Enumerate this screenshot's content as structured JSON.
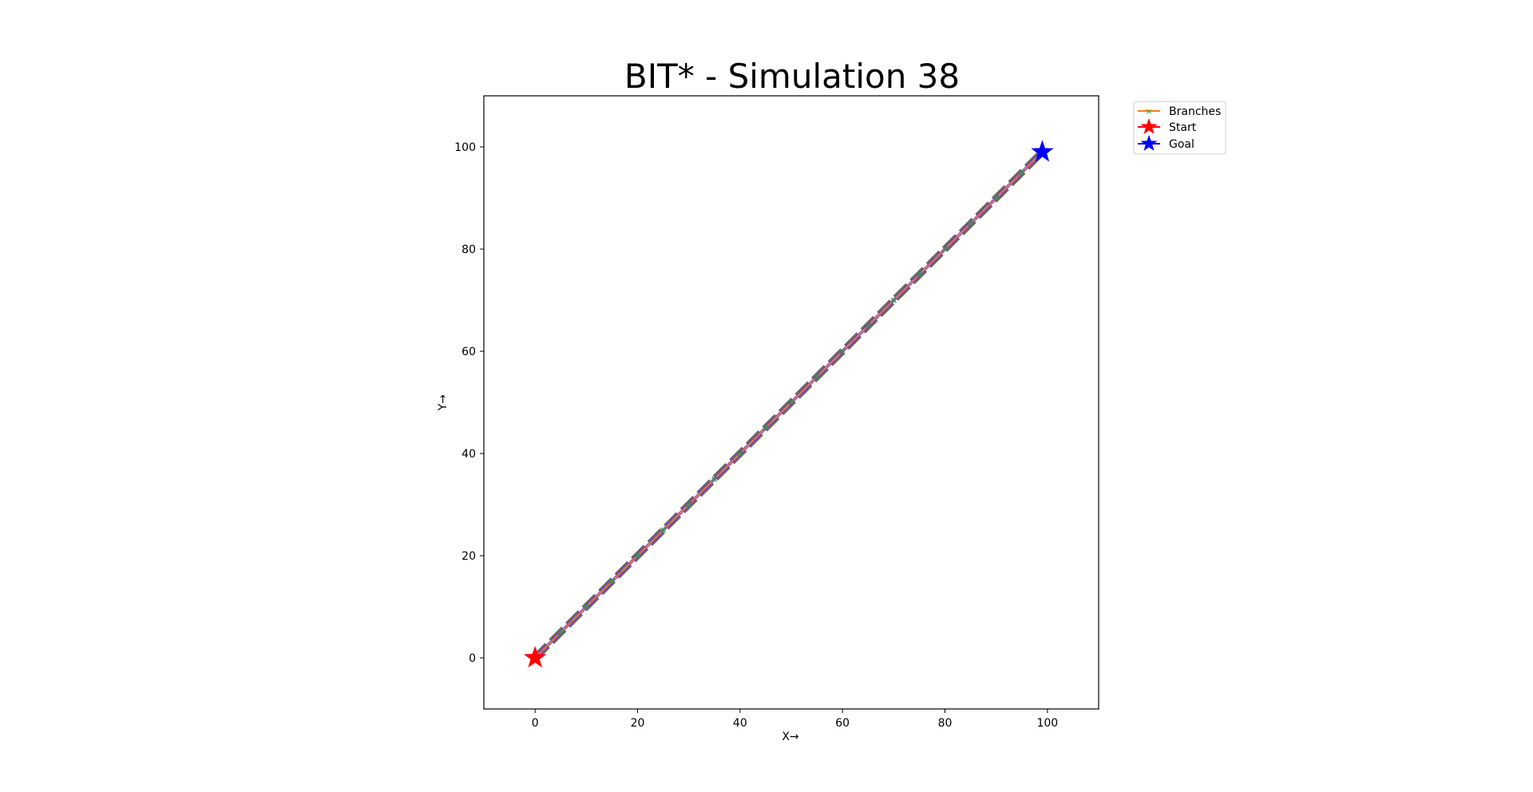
{
  "chart_data": {
    "type": "line",
    "title": "BIT* - Simulation 38",
    "xlabel": "X→",
    "ylabel": "Y→",
    "xlim": [
      -10,
      110
    ],
    "ylim": [
      -10,
      110
    ],
    "xticks": [
      0,
      20,
      40,
      60,
      80,
      100
    ],
    "yticks": [
      0,
      20,
      40,
      60,
      80,
      100
    ],
    "grid": false,
    "legend_position": "outside-top-right",
    "series": [
      {
        "name": "Branches",
        "color": "#ff7f0e",
        "marker_color": "#2ca02c",
        "marker": "x",
        "x": [
          0,
          5,
          10,
          15,
          20,
          25,
          30,
          35,
          40,
          45,
          50,
          55,
          60,
          65,
          70,
          75,
          80,
          85,
          90,
          95,
          99
        ],
        "y": [
          0,
          5,
          10,
          15,
          20,
          25,
          30,
          35,
          40,
          45,
          50,
          55,
          60,
          65,
          70,
          75,
          80,
          85,
          90,
          95,
          99
        ]
      },
      {
        "name": "Start",
        "color": "#ff0000",
        "marker": "star",
        "x": [
          0
        ],
        "y": [
          0
        ]
      },
      {
        "name": "Goal",
        "color": "#0000ff",
        "marker": "star",
        "x": [
          99
        ],
        "y": [
          99
        ]
      }
    ],
    "path_overlays": [
      {
        "style": "dashed-thick",
        "color": "#555555",
        "x": [
          0,
          99
        ],
        "y": [
          0,
          99
        ]
      },
      {
        "style": "solid",
        "color": "#9b30d9",
        "x": [
          0,
          99
        ],
        "y": [
          0,
          99
        ]
      },
      {
        "style": "dashdot",
        "color": "#17becf",
        "x": [
          0,
          99
        ],
        "y": [
          0,
          99
        ]
      }
    ]
  }
}
